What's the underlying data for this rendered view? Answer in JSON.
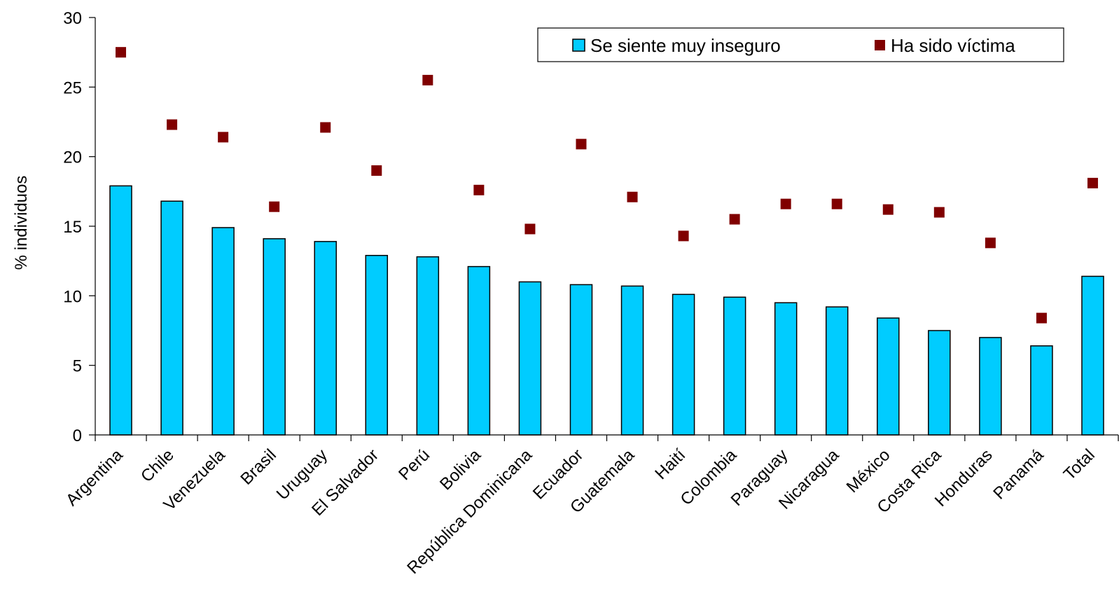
{
  "chart_data": {
    "type": "bar",
    "title": "",
    "xlabel": "",
    "ylabel": "% individuos",
    "ylim": [
      0,
      30
    ],
    "yticks": [
      0,
      5,
      10,
      15,
      20,
      25,
      30
    ],
    "grid": false,
    "legend_placement": "top-right",
    "categories": [
      "Argentina",
      "Chile",
      "Venezuela",
      "Brasil",
      "Uruguay",
      "El Salvador",
      "Perú",
      "Bolivia",
      "República Dominicana",
      "Ecuador",
      "Guatemala",
      "Haití",
      "Colombia",
      "Paraguay",
      "Nicaragua",
      "México",
      "Costa Rica",
      "Honduras",
      "Panamá",
      "Total"
    ],
    "series": [
      {
        "name": "Se siente muy inseguro",
        "type": "bar",
        "color": "#00ccff",
        "values": [
          17.9,
          16.8,
          14.9,
          14.1,
          13.9,
          12.9,
          12.8,
          12.1,
          11.0,
          10.8,
          10.7,
          10.1,
          9.9,
          9.5,
          9.2,
          8.4,
          7.5,
          7.0,
          6.4,
          11.4
        ]
      },
      {
        "name": "Ha sido víctima",
        "type": "marker",
        "color": "#800000",
        "values": [
          27.5,
          22.3,
          21.4,
          16.4,
          22.1,
          19.0,
          25.5,
          17.6,
          14.8,
          20.9,
          17.1,
          14.3,
          15.5,
          16.6,
          16.6,
          16.2,
          16.0,
          13.8,
          8.4,
          18.1
        ]
      }
    ]
  }
}
